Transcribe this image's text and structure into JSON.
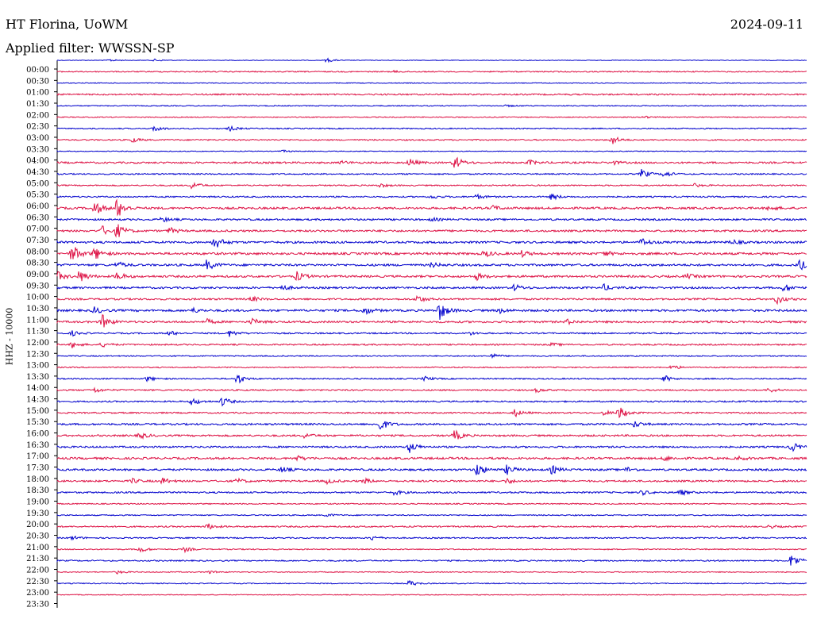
{
  "header": {
    "station": "HT Florina, UoWM",
    "date": "2024-09-11",
    "filter": "Applied filter: WWSSN-SP"
  },
  "chart_data": {
    "type": "line",
    "title": "HT Florina, UoWM",
    "ylabel": "HHZ - 10000",
    "colors": {
      "odd": "#0000cc",
      "even": "#dd1144"
    },
    "rows": [
      "00:00",
      "00:30",
      "01:00",
      "01:30",
      "02:00",
      "02:30",
      "03:00",
      "03:30",
      "04:00",
      "04:30",
      "05:00",
      "05:30",
      "06:00",
      "06:30",
      "07:00",
      "07:30",
      "08:00",
      "08:30",
      "09:00",
      "09:30",
      "10:00",
      "10:30",
      "11:00",
      "11:30",
      "12:00",
      "12:30",
      "13:00",
      "13:30",
      "14:00",
      "14:30",
      "15:00",
      "15:30",
      "16:00",
      "16:30",
      "17:00",
      "17:30",
      "18:00",
      "18:30",
      "19:00",
      "19:30",
      "20:00",
      "20:30",
      "21:00",
      "21:30",
      "22:00",
      "22:30",
      "23:00",
      "23:30"
    ],
    "noise": [
      0.4,
      0.7,
      0.5,
      0.9,
      0.6,
      0.6,
      0.7,
      0.8,
      0.5,
      1.1,
      0.8,
      0.8,
      0.9,
      1.3,
      1.1,
      1.2,
      1.3,
      1.4,
      1.3,
      1.3,
      1.2,
      1.1,
      1.3,
      1.2,
      0.9,
      0.9,
      0.7,
      0.7,
      0.8,
      0.9,
      0.9,
      0.9,
      1.1,
      1.1,
      1.1,
      1.3,
      1.2,
      1.1,
      1.0,
      0.7,
      0.7,
      0.9,
      0.8,
      0.7,
      0.8,
      0.6,
      0.6,
      0.5
    ],
    "events": [
      [
        [
          0.07,
          1.5
        ],
        [
          0.13,
          1.5
        ],
        [
          0.36,
          2.5
        ]
      ],
      [
        [
          0.45,
          1.0
        ]
      ],
      [],
      [],
      [
        [
          0.6,
          1.0
        ]
      ],
      [
        [
          0.78,
          2.0
        ]
      ],
      [
        [
          0.13,
          4.0
        ],
        [
          0.23,
          3.0
        ]
      ],
      [
        [
          0.1,
          3.0
        ],
        [
          0.74,
          6.0
        ]
      ],
      [
        [
          0.3,
          1.5
        ]
      ],
      [
        [
          0.38,
          2.0
        ],
        [
          0.47,
          5.0
        ],
        [
          0.53,
          9.0
        ],
        [
          0.63,
          3.0
        ],
        [
          0.74,
          2.5
        ]
      ],
      [
        [
          0.78,
          6.0
        ],
        [
          0.81,
          4.0
        ]
      ],
      [
        [
          0.18,
          5.0
        ],
        [
          0.43,
          2.5
        ],
        [
          0.85,
          2.0
        ]
      ],
      [
        [
          0.5,
          2.5
        ],
        [
          0.56,
          3.0
        ],
        [
          0.66,
          4.0
        ]
      ],
      [
        [
          0.05,
          9.0
        ],
        [
          0.08,
          13.0
        ],
        [
          0.58,
          3.0
        ],
        [
          0.95,
          3.0
        ]
      ],
      [
        [
          0.14,
          3.0
        ],
        [
          0.5,
          2.0
        ]
      ],
      [
        [
          0.06,
          6.0
        ],
        [
          0.08,
          9.0
        ],
        [
          0.15,
          4.0
        ]
      ],
      [
        [
          0.21,
          9.0
        ],
        [
          0.78,
          5.0
        ],
        [
          0.9,
          3.0
        ]
      ],
      [
        [
          0.02,
          12.0
        ],
        [
          0.05,
          8.0
        ],
        [
          0.57,
          4.0
        ],
        [
          0.62,
          3.5
        ],
        [
          0.73,
          3.0
        ]
      ],
      [
        [
          0.08,
          4.0
        ],
        [
          0.2,
          7.0
        ],
        [
          0.5,
          3.0
        ],
        [
          0.99,
          7.0
        ]
      ],
      [
        [
          0.0,
          6.0
        ],
        [
          0.03,
          8.0
        ],
        [
          0.08,
          5.0
        ],
        [
          0.32,
          6.0
        ],
        [
          0.56,
          4.0
        ],
        [
          0.84,
          3.0
        ]
      ],
      [
        [
          0.3,
          3.0
        ],
        [
          0.61,
          4.0
        ],
        [
          0.73,
          4.0
        ],
        [
          0.97,
          5.0
        ]
      ],
      [
        [
          0.26,
          3.0
        ],
        [
          0.48,
          5.0
        ],
        [
          0.96,
          6.0
        ]
      ],
      [
        [
          0.05,
          4.0
        ],
        [
          0.18,
          3.0
        ],
        [
          0.41,
          5.0
        ],
        [
          0.51,
          12.0
        ],
        [
          0.59,
          3.0
        ]
      ],
      [
        [
          0.06,
          9.0
        ],
        [
          0.2,
          3.0
        ],
        [
          0.26,
          4.0
        ],
        [
          0.68,
          3.0
        ]
      ],
      [
        [
          0.02,
          3.0
        ],
        [
          0.15,
          3.0
        ],
        [
          0.23,
          4.0
        ],
        [
          0.55,
          2.0
        ]
      ],
      [
        [
          0.02,
          4.0
        ],
        [
          0.06,
          3.0
        ],
        [
          0.66,
          2.0
        ]
      ],
      [
        [
          0.58,
          3.0
        ]
      ],
      [
        [
          0.82,
          3.0
        ]
      ],
      [
        [
          0.12,
          3.0
        ],
        [
          0.24,
          7.0
        ],
        [
          0.49,
          3.0
        ],
        [
          0.81,
          4.0
        ]
      ],
      [
        [
          0.05,
          3.0
        ],
        [
          0.64,
          2.5
        ],
        [
          0.95,
          3.0
        ]
      ],
      [
        [
          0.18,
          5.0
        ],
        [
          0.22,
          6.0
        ]
      ],
      [
        [
          0.61,
          5.0
        ],
        [
          0.73,
          3.0
        ],
        [
          0.75,
          8.0
        ]
      ],
      [
        [
          0.43,
          9.0
        ],
        [
          0.77,
          4.0
        ]
      ],
      [
        [
          0.11,
          4.0
        ],
        [
          0.33,
          3.0
        ],
        [
          0.53,
          7.0
        ]
      ],
      [
        [
          0.47,
          7.0
        ],
        [
          0.98,
          6.0
        ]
      ],
      [
        [
          0.32,
          3.0
        ],
        [
          0.81,
          3.0
        ],
        [
          0.91,
          2.0
        ]
      ],
      [
        [
          0.3,
          4.0
        ],
        [
          0.56,
          9.0
        ],
        [
          0.6,
          6.0
        ],
        [
          0.66,
          5.0
        ],
        [
          0.76,
          3.0
        ]
      ],
      [
        [
          0.1,
          3.0
        ],
        [
          0.14,
          4.0
        ],
        [
          0.24,
          3.0
        ],
        [
          0.36,
          3.0
        ],
        [
          0.41,
          3.0
        ],
        [
          0.6,
          3.0
        ]
      ],
      [
        [
          0.45,
          3.0
        ],
        [
          0.78,
          3.0
        ],
        [
          0.83,
          4.0
        ]
      ],
      [],
      [
        [
          0.36,
          2.0
        ]
      ],
      [
        [
          0.2,
          4.0
        ],
        [
          0.95,
          2.0
        ]
      ],
      [
        [
          0.02,
          2.5
        ],
        [
          0.42,
          3.0
        ]
      ],
      [
        [
          0.11,
          4.0
        ],
        [
          0.17,
          3.0
        ]
      ],
      [
        [
          0.98,
          10.0
        ]
      ],
      [
        [
          0.08,
          2.0
        ],
        [
          0.2,
          2.0
        ]
      ],
      [
        [
          0.47,
          4.0
        ]
      ],
      []
    ]
  }
}
